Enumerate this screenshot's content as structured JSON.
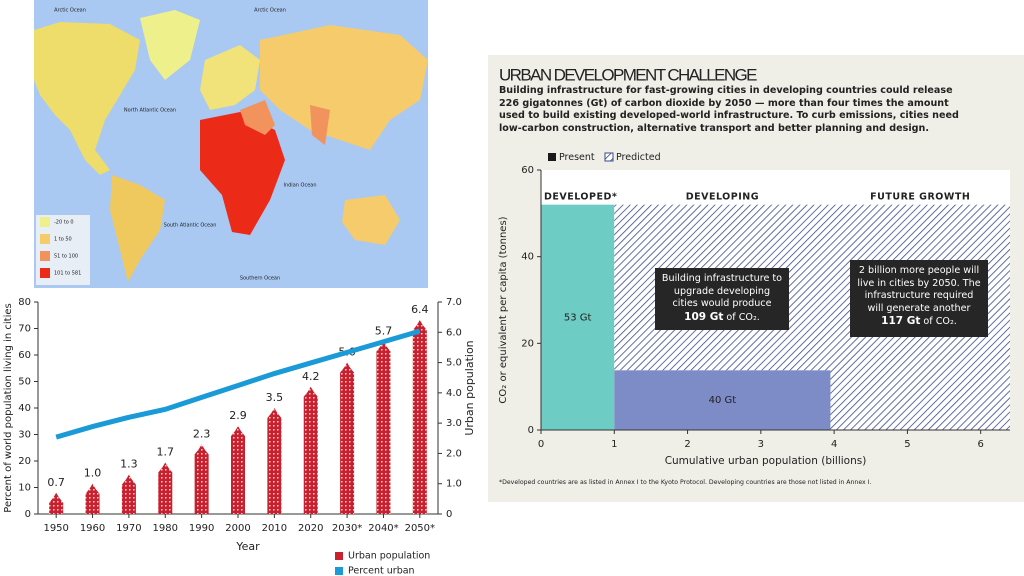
{
  "map": {
    "legend": [
      {
        "label": "-20 to 0",
        "color": "#eef08c"
      },
      {
        "label": "1 to 50",
        "color": "#f5cb6c"
      },
      {
        "label": "51 to 100",
        "color": "#f2925c"
      },
      {
        "label": "101 to 581",
        "color": "#ec2a18"
      }
    ],
    "labels": [
      "Arctic Ocean",
      "Arctic Ocean",
      "North Atlantic Ocean",
      "South Atlantic Ocean",
      "Indian Ocean",
      "Southern Ocean"
    ]
  },
  "chart_data": [
    {
      "type": "bar-line",
      "categories": [
        "1950",
        "1960",
        "1970",
        "1980",
        "1990",
        "2000",
        "2010",
        "2020",
        "2030*",
        "2040*",
        "2050*"
      ],
      "series": [
        {
          "name": "Urban population",
          "color": "#c8202e",
          "axis": "y2",
          "values": [
            0.7,
            1.0,
            1.3,
            1.7,
            2.3,
            2.9,
            3.5,
            4.2,
            5.0,
            5.7,
            6.4
          ],
          "value_labels": [
            "0.7",
            "1.0",
            "1.3",
            "1.7",
            "2.3",
            "2.9",
            "3.5",
            "4.2",
            "5.0",
            "5.7",
            "6.4"
          ]
        },
        {
          "name": "Percent urban",
          "color": "#1a9ad6",
          "values": [
            29,
            33,
            36.5,
            39.5,
            44,
            48.5,
            53,
            57,
            61,
            65,
            69
          ]
        }
      ],
      "ylim": [
        0,
        80
      ],
      "yticks": [
        0,
        10,
        20,
        30,
        40,
        50,
        60,
        70,
        80
      ],
      "y2lim": [
        0,
        7
      ],
      "y2ticks": [
        0,
        {
          "value": 1,
          "label": "1.0"
        },
        {
          "value": 2,
          "label": "2.0"
        },
        {
          "value": 3,
          "label": "3.0"
        },
        {
          "value": 4,
          "label": "4.0"
        },
        {
          "value": 5,
          "label": "5.0"
        },
        {
          "value": 6,
          "label": "6.0"
        },
        {
          "value": 7,
          "label": "7.0"
        }
      ],
      "ylabel": "Percent of world population living in cities",
      "y2label": "Urban population",
      "xlabel": "Year"
    },
    {
      "type": "variable-width-bar",
      "title": "URBAN DEVELOPMENT CHALLENGE",
      "subtitle": "Building infrastructure for fast-growing cities in developing countries could release 226 gigatonnes (Gt) of carbon dioxide by 2050 — more than four times the amount used to build existing developed-world infrastructure. To curb emissions, cities need low-carbon construction, alternative transport and better planning and design.",
      "categories": [
        "DEVELOPED*",
        "DEVELOPING",
        "FUTURE GROWTH"
      ],
      "x_edges": [
        0,
        1,
        3.95
      ],
      "series": [
        {
          "name": "Present",
          "color": "#1a1a1a",
          "bar_colors": [
            "#6dccc4",
            "#7d8cc6",
            null
          ],
          "values": [
            52,
            13.8,
            null
          ],
          "bar_labels": [
            "53 Gt",
            "40 Gt",
            null
          ]
        },
        {
          "name": "Predicted",
          "color": "#3b4a8a",
          "values": [
            null,
            38.2,
            52
          ]
        }
      ],
      "annotations": [
        {
          "parts": [
            "Building infrastructure to upgrade developing cities would produce ",
            "109 Gt",
            " of CO₂."
          ]
        },
        {
          "parts": [
            "2 billion more people will live in cities by 2050. The infrastructure required will generate another ",
            "117 Gt",
            " of CO₂."
          ]
        }
      ],
      "xlim": [
        0,
        6.4
      ],
      "xticks": [
        0,
        1,
        2,
        3,
        4,
        5,
        6
      ],
      "ylim": [
        0,
        60
      ],
      "yticks": [
        0,
        20,
        40,
        60
      ],
      "xlabel": "Cumulative urban population (billions)",
      "ylabel": "CO₂ or equivalent per capita (tonnes)",
      "footnote": "*Developed countries are as listed in Annex I to the Kyoto Protocol. Developing countries are those not listed in Annex I."
    }
  ]
}
